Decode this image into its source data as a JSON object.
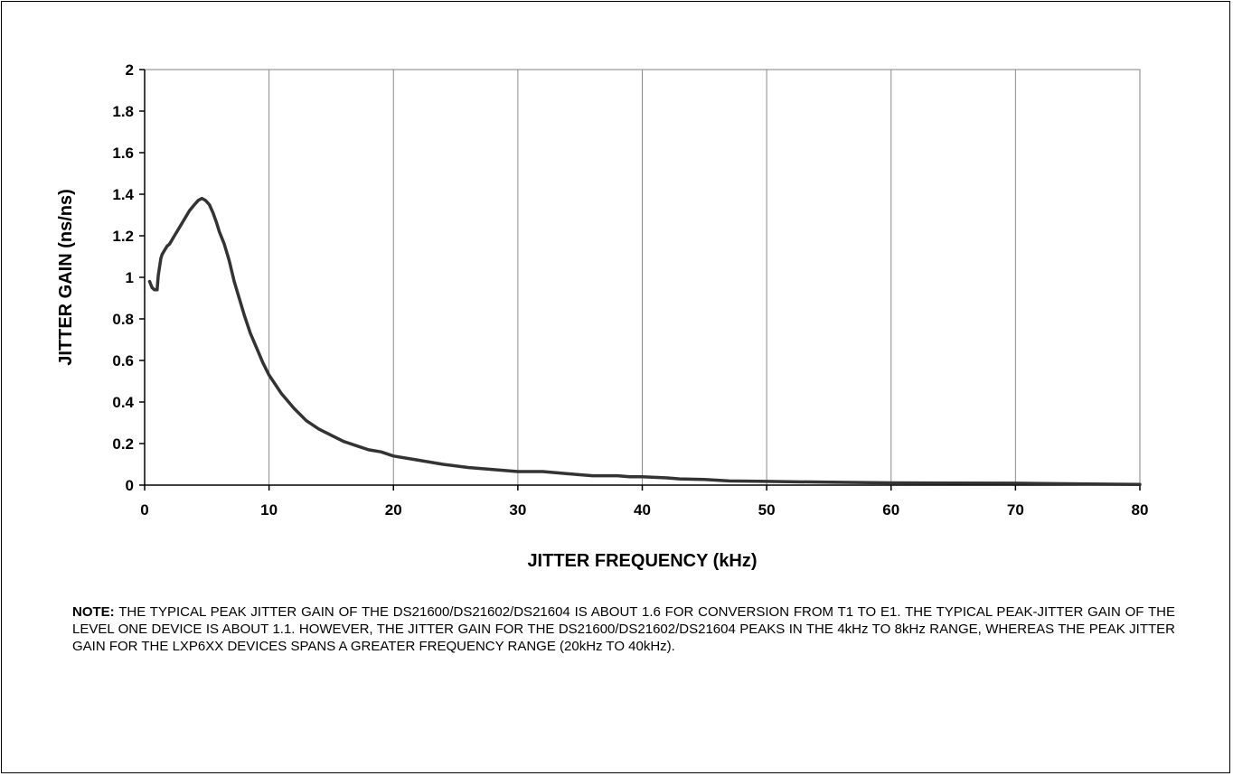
{
  "chart_data": {
    "type": "line",
    "title": "",
    "xlabel": "JITTER FREQUENCY (kHz)",
    "ylabel": "JITTER GAIN (ns/ns)",
    "xlim": [
      0,
      80
    ],
    "ylim": [
      0,
      2
    ],
    "x_ticks": [
      0,
      10,
      20,
      30,
      40,
      50,
      60,
      70,
      80
    ],
    "x_tick_labels": [
      "0",
      "10",
      "20",
      "30",
      "40",
      "50",
      "60",
      "70",
      "80"
    ],
    "y_ticks": [
      0,
      0.2,
      0.4,
      0.6,
      0.8,
      1,
      1.2,
      1.4,
      1.6,
      1.8,
      2
    ],
    "y_tick_labels": [
      "0",
      "0.2",
      "0.4",
      "0.6",
      "0.8",
      "1",
      "1.2",
      "1.4",
      "1.6",
      "1.8",
      "2"
    ],
    "grid": "vertical",
    "legend": "none",
    "series": [
      {
        "color": "#333333",
        "x": [
          0.4,
          0.6,
          0.8,
          1.0,
          1.1,
          1.2,
          1.3,
          1.4,
          1.6,
          1.8,
          2.0,
          2.4,
          2.8,
          3.2,
          3.6,
          4.0,
          4.3,
          4.6,
          4.9,
          5.2,
          5.5,
          5.8,
          6.0,
          6.4,
          6.8,
          7.2,
          7.6,
          8.0,
          8.5,
          9.0,
          9.5,
          10.0,
          11.0,
          12.0,
          13.0,
          14.0,
          15.0,
          16.0,
          17.0,
          18.0,
          19.0,
          20.0,
          22.0,
          24.0,
          26.0,
          28.0,
          30.0,
          32.0,
          34.0,
          36.0,
          38.0,
          39.0,
          40.0,
          42.0,
          43.0,
          45.0,
          47.0,
          50.0,
          55.0,
          60.0,
          65.0,
          70.0,
          75.0,
          80.0
        ],
        "y": [
          0.98,
          0.95,
          0.94,
          0.94,
          1.01,
          1.05,
          1.09,
          1.11,
          1.13,
          1.15,
          1.16,
          1.2,
          1.24,
          1.28,
          1.32,
          1.35,
          1.37,
          1.38,
          1.37,
          1.35,
          1.31,
          1.26,
          1.22,
          1.16,
          1.08,
          0.98,
          0.9,
          0.82,
          0.73,
          0.66,
          0.59,
          0.53,
          0.44,
          0.37,
          0.31,
          0.27,
          0.24,
          0.21,
          0.19,
          0.17,
          0.16,
          0.14,
          0.12,
          0.1,
          0.085,
          0.075,
          0.065,
          0.065,
          0.055,
          0.045,
          0.045,
          0.04,
          0.04,
          0.035,
          0.03,
          0.027,
          0.02,
          0.018,
          0.014,
          0.011,
          0.01,
          0.009,
          0.006,
          0.003
        ]
      }
    ]
  },
  "note": {
    "label": "NOTE:",
    "text": " THE TYPICAL PEAK JITTER GAIN OF THE DS21600/DS21602/DS21604 IS ABOUT 1.6 FOR CONVERSION FROM T1 TO E1. THE TYPICAL PEAK-JITTER GAIN OF THE LEVEL ONE DEVICE IS ABOUT 1.1. HOWEVER, THE JITTER GAIN FOR THE DS21600/DS21602/DS21604 PEAKS IN THE 4kHz TO 8kHz RANGE, WHEREAS THE PEAK JITTER GAIN FOR THE LXP6XX DEVICES SPANS A GREATER FREQUENCY RANGE (20kHz TO 40kHz)."
  }
}
